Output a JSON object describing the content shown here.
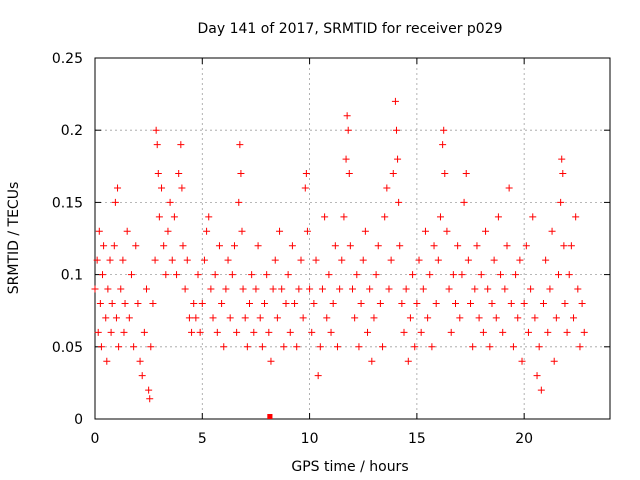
{
  "chart_data": {
    "type": "scatter",
    "title": "Day 141 of 2017, SRMTID for receiver p029",
    "xlabel": "GPS time / hours",
    "ylabel": "SRMTID / TECUs",
    "xlim": [
      0,
      24
    ],
    "ylim": [
      0,
      0.25
    ],
    "xticks": [
      0,
      5,
      10,
      15,
      20
    ],
    "xtick_labels": [
      "0",
      "5",
      "10",
      "15",
      "20"
    ],
    "yticks": [
      0,
      0.05,
      0.1,
      0.15,
      0.2,
      0.25
    ],
    "ytick_labels": [
      "0",
      "0.05",
      "0.1",
      "0.15",
      "0.2",
      "0.25"
    ],
    "grid": true,
    "marker": "+",
    "color": "#ff0000",
    "series": [
      {
        "name": "SRMTID",
        "points": [
          [
            0.0,
            0.09
          ],
          [
            0.1,
            0.11
          ],
          [
            0.15,
            0.06
          ],
          [
            0.2,
            0.13
          ],
          [
            0.25,
            0.08
          ],
          [
            0.3,
            0.05
          ],
          [
            0.35,
            0.1
          ],
          [
            0.4,
            0.12
          ],
          [
            0.5,
            0.07
          ],
          [
            0.55,
            0.04
          ],
          [
            0.6,
            0.09
          ],
          [
            0.7,
            0.11
          ],
          [
            0.75,
            0.06
          ],
          [
            0.8,
            0.08
          ],
          [
            0.9,
            0.12
          ],
          [
            0.95,
            0.15
          ],
          [
            1.0,
            0.07
          ],
          [
            1.05,
            0.16
          ],
          [
            1.1,
            0.05
          ],
          [
            1.2,
            0.09
          ],
          [
            1.3,
            0.11
          ],
          [
            1.35,
            0.06
          ],
          [
            1.4,
            0.08
          ],
          [
            1.5,
            0.13
          ],
          [
            1.6,
            0.07
          ],
          [
            1.7,
            0.1
          ],
          [
            1.8,
            0.05
          ],
          [
            1.9,
            0.12
          ],
          [
            2.0,
            0.08
          ],
          [
            2.1,
            0.04
          ],
          [
            2.2,
            0.03
          ],
          [
            2.3,
            0.06
          ],
          [
            2.4,
            0.09
          ],
          [
            2.5,
            0.02
          ],
          [
            2.55,
            0.014
          ],
          [
            2.6,
            0.05
          ],
          [
            2.7,
            0.08
          ],
          [
            2.8,
            0.11
          ],
          [
            2.85,
            0.2
          ],
          [
            2.9,
            0.19
          ],
          [
            2.95,
            0.17
          ],
          [
            3.0,
            0.14
          ],
          [
            3.1,
            0.16
          ],
          [
            3.2,
            0.12
          ],
          [
            3.3,
            0.1
          ],
          [
            3.4,
            0.13
          ],
          [
            3.5,
            0.15
          ],
          [
            3.6,
            0.11
          ],
          [
            3.7,
            0.14
          ],
          [
            3.8,
            0.1
          ],
          [
            3.9,
            0.17
          ],
          [
            4.0,
            0.19
          ],
          [
            4.05,
            0.16
          ],
          [
            4.1,
            0.12
          ],
          [
            4.2,
            0.09
          ],
          [
            4.3,
            0.11
          ],
          [
            4.4,
            0.07
          ],
          [
            4.5,
            0.06
          ],
          [
            4.6,
            0.08
          ],
          [
            4.7,
            0.07
          ],
          [
            4.8,
            0.1
          ],
          [
            4.9,
            0.06
          ],
          [
            5.0,
            0.08
          ],
          [
            5.1,
            0.11
          ],
          [
            5.2,
            0.13
          ],
          [
            5.3,
            0.14
          ],
          [
            5.4,
            0.09
          ],
          [
            5.5,
            0.07
          ],
          [
            5.6,
            0.1
          ],
          [
            5.7,
            0.06
          ],
          [
            5.8,
            0.12
          ],
          [
            5.9,
            0.08
          ],
          [
            6.0,
            0.05
          ],
          [
            6.1,
            0.09
          ],
          [
            6.2,
            0.11
          ],
          [
            6.3,
            0.07
          ],
          [
            6.4,
            0.1
          ],
          [
            6.5,
            0.12
          ],
          [
            6.6,
            0.06
          ],
          [
            6.7,
            0.15
          ],
          [
            6.75,
            0.19
          ],
          [
            6.8,
            0.17
          ],
          [
            6.85,
            0.13
          ],
          [
            6.9,
            0.09
          ],
          [
            7.0,
            0.07
          ],
          [
            7.1,
            0.05
          ],
          [
            7.2,
            0.08
          ],
          [
            7.3,
            0.1
          ],
          [
            7.4,
            0.06
          ],
          [
            7.5,
            0.09
          ],
          [
            7.6,
            0.12
          ],
          [
            7.7,
            0.07
          ],
          [
            7.8,
            0.05
          ],
          [
            7.9,
            0.08
          ],
          [
            8.0,
            0.1
          ],
          [
            8.1,
            0.06
          ],
          [
            8.2,
            0.04
          ],
          [
            8.3,
            0.09
          ],
          [
            8.4,
            0.11
          ],
          [
            8.5,
            0.07
          ],
          [
            8.6,
            0.13
          ],
          [
            8.7,
            0.09
          ],
          [
            8.8,
            0.05
          ],
          [
            8.9,
            0.08
          ],
          [
            9.0,
            0.1
          ],
          [
            9.1,
            0.06
          ],
          [
            9.2,
            0.12
          ],
          [
            9.3,
            0.08
          ],
          [
            9.4,
            0.05
          ],
          [
            9.5,
            0.09
          ],
          [
            9.6,
            0.11
          ],
          [
            9.7,
            0.07
          ],
          [
            9.8,
            0.16
          ],
          [
            9.85,
            0.17
          ],
          [
            9.9,
            0.13
          ],
          [
            10.0,
            0.09
          ],
          [
            10.1,
            0.06
          ],
          [
            10.2,
            0.08
          ],
          [
            10.3,
            0.11
          ],
          [
            10.4,
            0.03
          ],
          [
            10.5,
            0.05
          ],
          [
            10.6,
            0.09
          ],
          [
            10.7,
            0.14
          ],
          [
            10.8,
            0.07
          ],
          [
            10.9,
            0.1
          ],
          [
            11.0,
            0.06
          ],
          [
            11.1,
            0.08
          ],
          [
            11.2,
            0.12
          ],
          [
            11.3,
            0.05
          ],
          [
            11.4,
            0.09
          ],
          [
            11.5,
            0.11
          ],
          [
            11.6,
            0.14
          ],
          [
            11.7,
            0.18
          ],
          [
            11.75,
            0.21
          ],
          [
            11.8,
            0.2
          ],
          [
            11.85,
            0.17
          ],
          [
            11.9,
            0.12
          ],
          [
            12.0,
            0.09
          ],
          [
            12.1,
            0.07
          ],
          [
            12.2,
            0.1
          ],
          [
            12.3,
            0.05
          ],
          [
            12.4,
            0.08
          ],
          [
            12.5,
            0.11
          ],
          [
            12.6,
            0.13
          ],
          [
            12.7,
            0.06
          ],
          [
            12.8,
            0.09
          ],
          [
            12.9,
            0.04
          ],
          [
            13.0,
            0.07
          ],
          [
            13.1,
            0.1
          ],
          [
            13.2,
            0.12
          ],
          [
            13.3,
            0.08
          ],
          [
            13.4,
            0.05
          ],
          [
            13.5,
            0.14
          ],
          [
            13.6,
            0.16
          ],
          [
            13.7,
            0.09
          ],
          [
            13.8,
            0.11
          ],
          [
            13.9,
            0.17
          ],
          [
            14.0,
            0.22
          ],
          [
            14.05,
            0.2
          ],
          [
            14.1,
            0.18
          ],
          [
            14.15,
            0.15
          ],
          [
            14.2,
            0.12
          ],
          [
            14.3,
            0.08
          ],
          [
            14.4,
            0.06
          ],
          [
            14.5,
            0.09
          ],
          [
            14.6,
            0.04
          ],
          [
            14.7,
            0.07
          ],
          [
            14.8,
            0.1
          ],
          [
            14.9,
            0.05
          ],
          [
            15.0,
            0.08
          ],
          [
            15.1,
            0.11
          ],
          [
            15.2,
            0.06
          ],
          [
            15.3,
            0.09
          ],
          [
            15.4,
            0.13
          ],
          [
            15.5,
            0.07
          ],
          [
            15.6,
            0.1
          ],
          [
            15.7,
            0.05
          ],
          [
            15.8,
            0.12
          ],
          [
            15.9,
            0.08
          ],
          [
            16.0,
            0.11
          ],
          [
            16.1,
            0.14
          ],
          [
            16.2,
            0.19
          ],
          [
            16.25,
            0.2
          ],
          [
            16.3,
            0.17
          ],
          [
            16.4,
            0.13
          ],
          [
            16.5,
            0.09
          ],
          [
            16.6,
            0.06
          ],
          [
            16.7,
            0.1
          ],
          [
            16.8,
            0.08
          ],
          [
            16.9,
            0.12
          ],
          [
            17.0,
            0.07
          ],
          [
            17.1,
            0.1
          ],
          [
            17.2,
            0.15
          ],
          [
            17.3,
            0.17
          ],
          [
            17.4,
            0.11
          ],
          [
            17.5,
            0.08
          ],
          [
            17.6,
            0.05
          ],
          [
            17.7,
            0.09
          ],
          [
            17.8,
            0.12
          ],
          [
            17.9,
            0.07
          ],
          [
            18.0,
            0.1
          ],
          [
            18.1,
            0.06
          ],
          [
            18.2,
            0.13
          ],
          [
            18.3,
            0.09
          ],
          [
            18.4,
            0.05
          ],
          [
            18.5,
            0.08
          ],
          [
            18.6,
            0.11
          ],
          [
            18.7,
            0.07
          ],
          [
            18.8,
            0.14
          ],
          [
            18.9,
            0.1
          ],
          [
            19.0,
            0.06
          ],
          [
            19.1,
            0.09
          ],
          [
            19.2,
            0.12
          ],
          [
            19.3,
            0.16
          ],
          [
            19.4,
            0.08
          ],
          [
            19.5,
            0.05
          ],
          [
            19.6,
            0.1
          ],
          [
            19.7,
            0.07
          ],
          [
            19.8,
            0.11
          ],
          [
            19.9,
            0.04
          ],
          [
            20.0,
            0.08
          ],
          [
            20.1,
            0.12
          ],
          [
            20.2,
            0.06
          ],
          [
            20.3,
            0.09
          ],
          [
            20.4,
            0.14
          ],
          [
            20.5,
            0.07
          ],
          [
            20.6,
            0.03
          ],
          [
            20.7,
            0.05
          ],
          [
            20.8,
            0.02
          ],
          [
            20.9,
            0.08
          ],
          [
            21.0,
            0.11
          ],
          [
            21.1,
            0.06
          ],
          [
            21.2,
            0.09
          ],
          [
            21.3,
            0.13
          ],
          [
            21.4,
            0.04
          ],
          [
            21.5,
            0.07
          ],
          [
            21.6,
            0.1
          ],
          [
            21.7,
            0.15
          ],
          [
            21.75,
            0.18
          ],
          [
            21.8,
            0.17
          ],
          [
            21.85,
            0.12
          ],
          [
            21.9,
            0.08
          ],
          [
            22.0,
            0.06
          ],
          [
            22.1,
            0.1
          ],
          [
            22.2,
            0.12
          ],
          [
            22.3,
            0.07
          ],
          [
            22.4,
            0.14
          ],
          [
            22.5,
            0.09
          ],
          [
            22.6,
            0.05
          ],
          [
            22.7,
            0.08
          ],
          [
            22.8,
            0.06
          ]
        ]
      }
    ],
    "gap_markers_x": [
      8.1,
      8.2
    ]
  }
}
